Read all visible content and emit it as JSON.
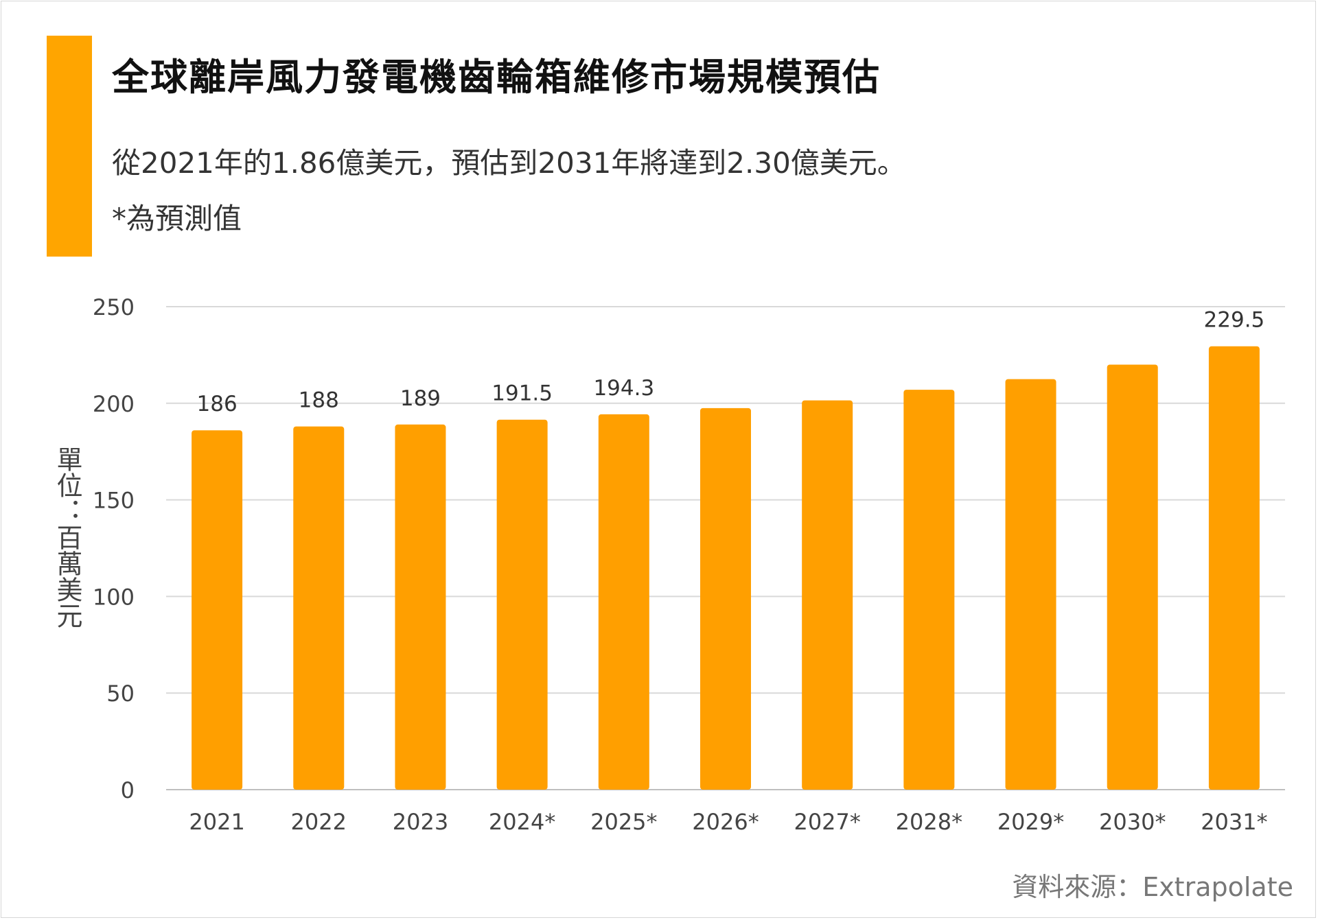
{
  "header": {
    "title": "全球離岸風力發電機齒輪箱維修市場規模預估",
    "subtitle": "從2021年的1.86億美元，預估到2031年將達到2.30億美元。",
    "note": "*為預測值"
  },
  "footer": {
    "source": "資料來源：Extrapolate"
  },
  "colors": {
    "accent": "#FFA500",
    "bar": "#FF9F00",
    "grid": "#d9d9d9",
    "axis_text": "#444444"
  },
  "chart_data": {
    "type": "bar",
    "title": "全球離岸風力發電機齒輪箱維修市場規模預估",
    "ylabel": "單位：百萬美元",
    "xlabel": "",
    "categories": [
      "2021",
      "2022",
      "2023",
      "2024*",
      "2025*",
      "2026*",
      "2027*",
      "2028*",
      "2029*",
      "2030*",
      "2031*"
    ],
    "values": [
      186,
      188,
      189,
      191.5,
      194.3,
      197.5,
      201.5,
      207,
      212.5,
      220,
      229.5
    ],
    "data_labels": [
      "186",
      "188",
      "189",
      "191.5",
      "194.3",
      "",
      "",
      "",
      "",
      "",
      "229.5"
    ],
    "ylim": [
      0,
      250
    ],
    "yticks": [
      0,
      50,
      100,
      150,
      200,
      250
    ],
    "grid": true,
    "legend": "none"
  }
}
